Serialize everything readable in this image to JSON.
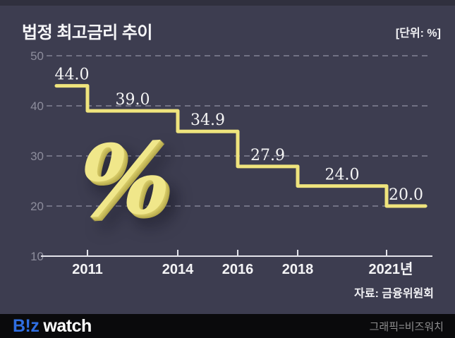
{
  "title": "법정 최고금리 추이",
  "unit_label": "[단위: %]",
  "source": "자료: 금융위원회",
  "watermark": "%",
  "footer": {
    "logo_biz": "B!z",
    "logo_watch": "watch",
    "credit": "그래픽=비즈워치"
  },
  "colors": {
    "background": "#3d3d50",
    "line_yellow": "#efe47d",
    "grid_gray": "#9b9bac",
    "axis_light": "#e3e3ea",
    "label_white": "#f5f5f5",
    "ytick_gray": "#8d8d9c",
    "logo_blue": "#2f6ee2",
    "footer_black": "#0a0a0c"
  },
  "chart_data": {
    "type": "line",
    "subtype": "step",
    "title": "법정 최고금리 추이",
    "unit": "%",
    "x_tick_labels": [
      "2011",
      "2014",
      "2016",
      "2018",
      "2021년"
    ],
    "x_years": [
      2011,
      2014,
      2016,
      2018,
      2021
    ],
    "values": [
      44.0,
      39.0,
      34.9,
      27.9,
      24.0,
      20.0
    ],
    "value_labels": [
      "44.0",
      "39.0",
      "34.9",
      "27.9",
      "24.0",
      "20.0"
    ],
    "segments_note": "each value holds until the next year boundary; 44.0 before 2011, 20.0 after 2021",
    "yticks": [
      50,
      40,
      30,
      20,
      10
    ],
    "ylim": [
      10,
      50
    ],
    "grid": "dashed horizontal, solid baseline at 10",
    "legend": "none"
  }
}
